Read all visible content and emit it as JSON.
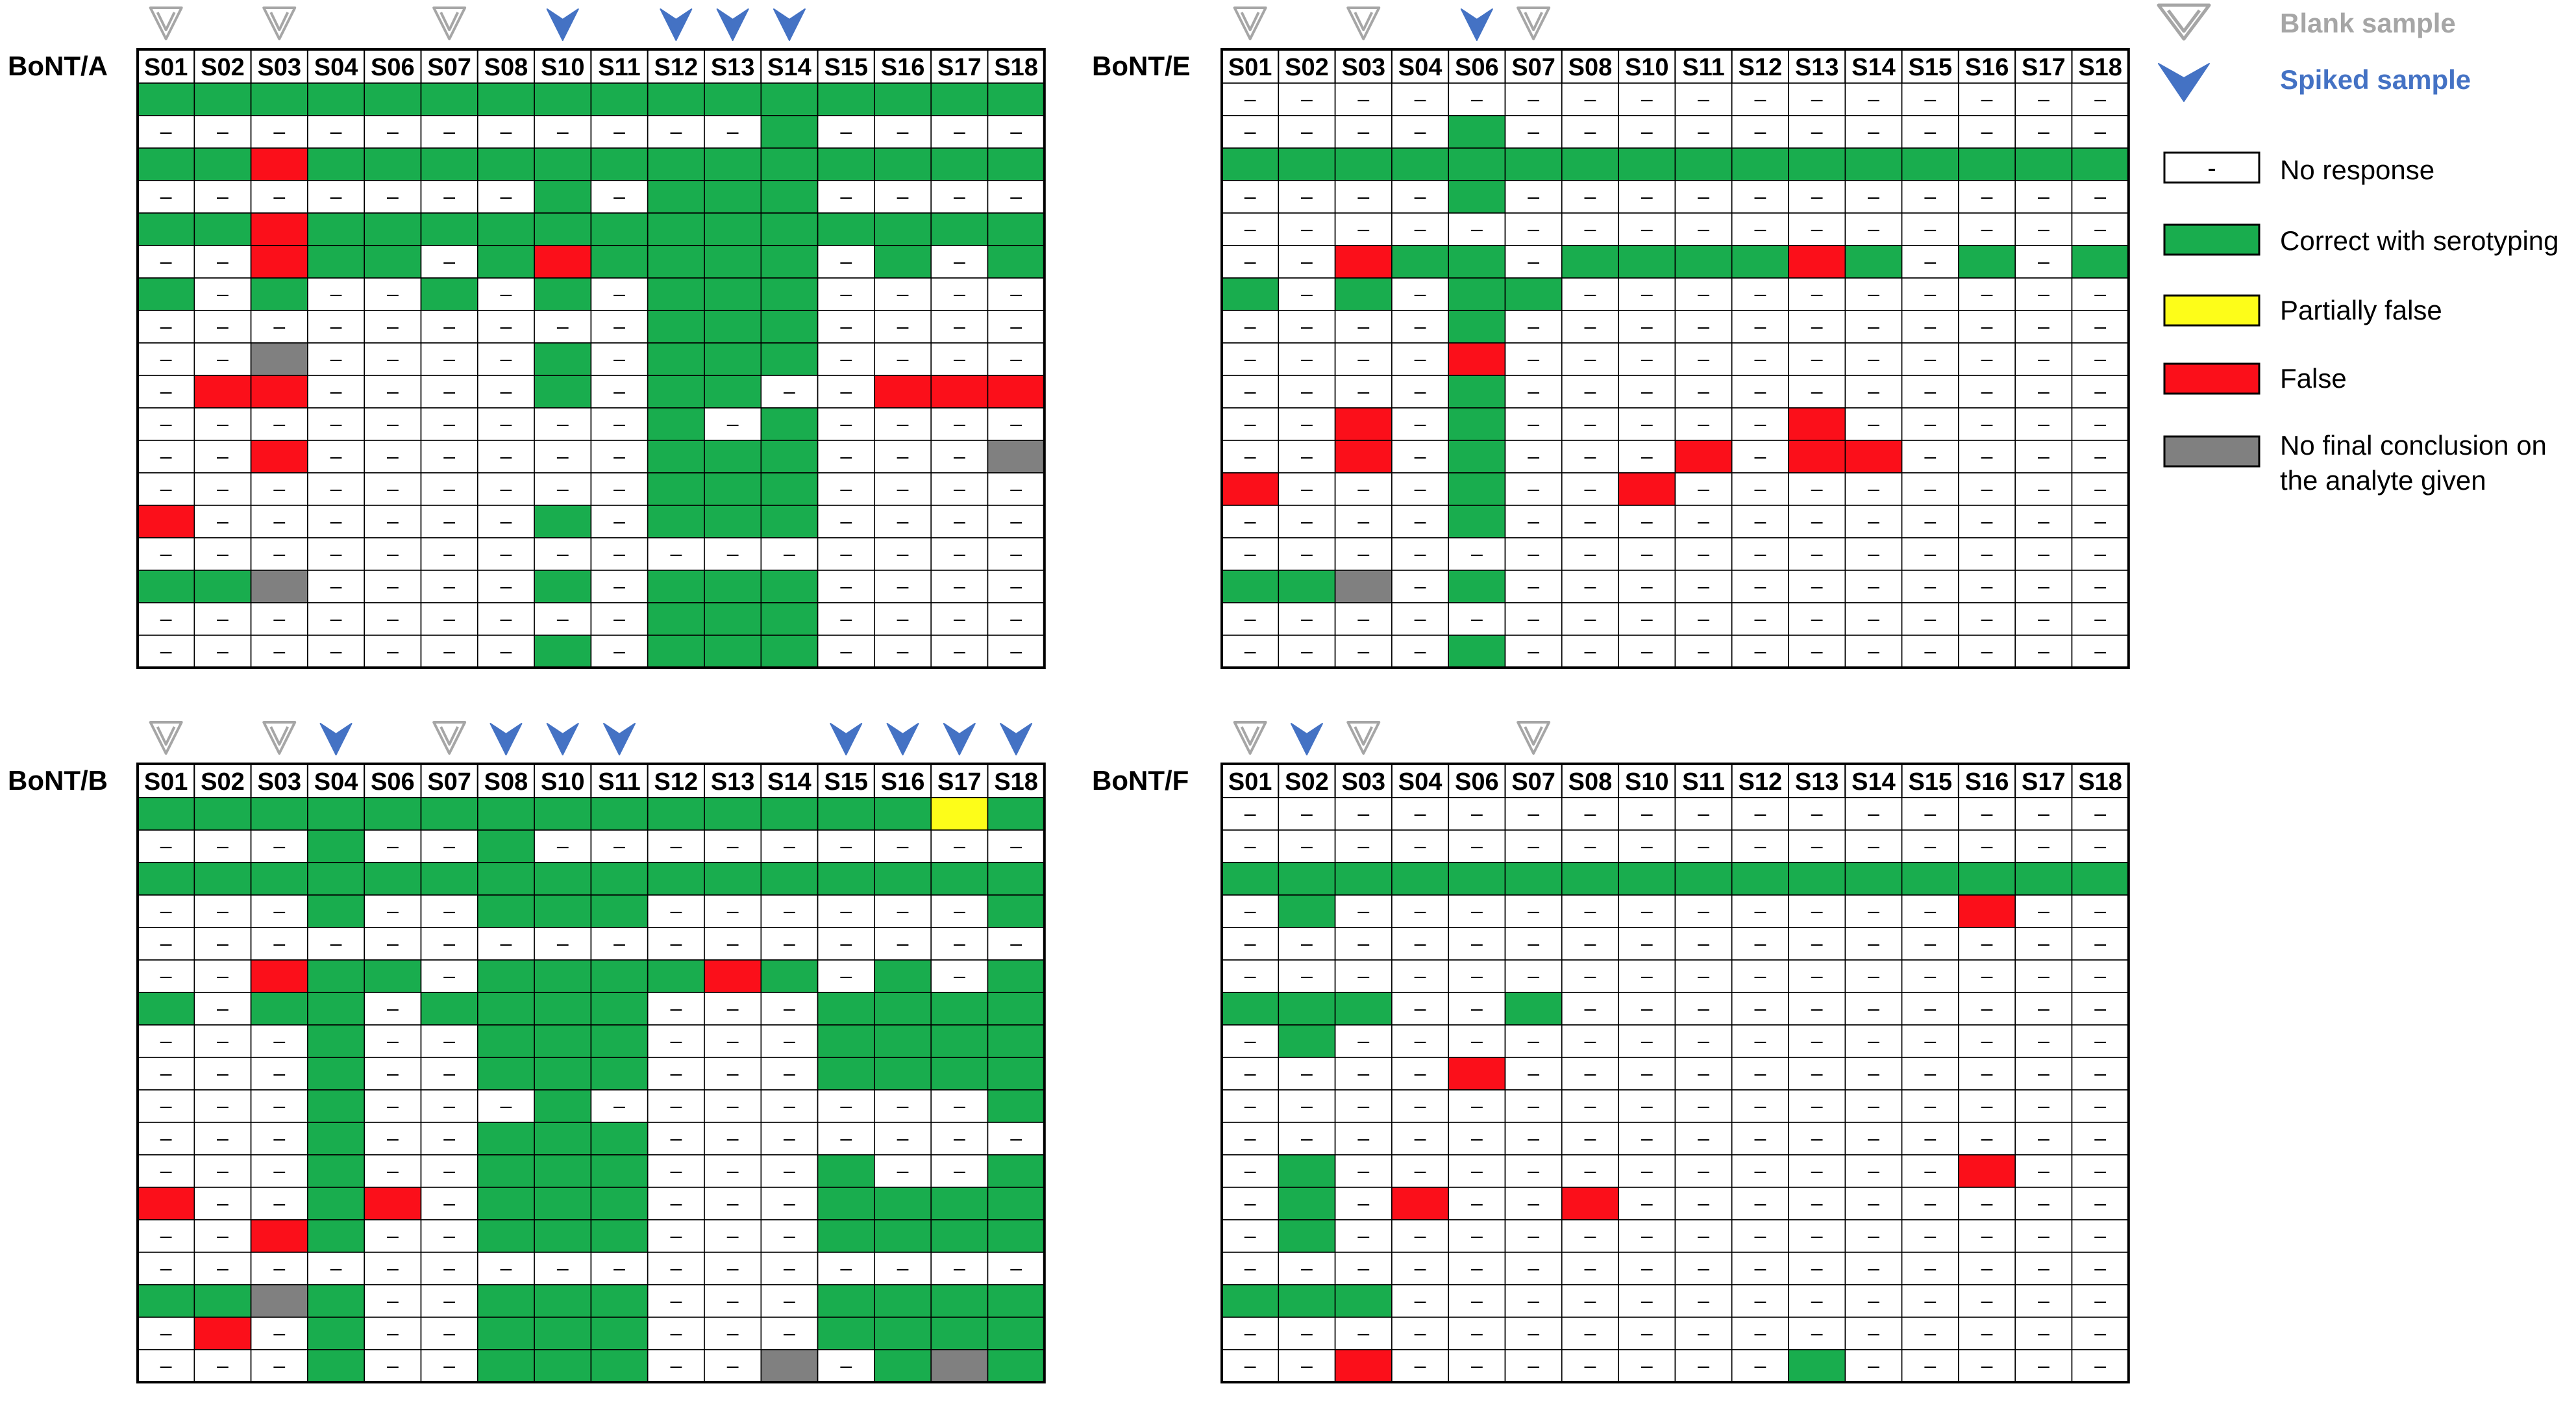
{
  "legend": {
    "blank_label": "Blank sample",
    "spiked_label": "Spiked sample",
    "no_response_symbol": "-",
    "no_response_label": "No response",
    "correct_label": "Correct with serotyping",
    "partial_label": "Partially false",
    "false_label": "False",
    "no_conclusion_label_line1": "No final conclusion on",
    "no_conclusion_label_line2": "the analyte given"
  },
  "colors": {
    "correct": "#19ad4e",
    "false": "#fb0f1a",
    "partial": "#fdfd19",
    "no_conclusion": "#808080",
    "blank_marker": "#a6a6a6",
    "spiked_marker": "#4472c4",
    "blank_text": "#a6a6a6",
    "spiked_text": "#4472c4"
  },
  "chart_data": [
    {
      "type": "table",
      "title": "BoNT/A",
      "columns": [
        "S01",
        "S02",
        "S03",
        "S04",
        "S06",
        "S07",
        "S08",
        "S10",
        "S11",
        "S12",
        "S13",
        "S14",
        "S15",
        "S16",
        "S17",
        "S18"
      ],
      "markers": [
        "blank",
        "",
        "blank",
        "",
        "",
        "blank",
        "",
        "spiked",
        "",
        "spiked",
        "spiked",
        "spiked",
        "",
        "",
        "",
        ""
      ],
      "rows": [
        "GGGGGGGGGGGGGGGG",
        "-----------G----",
        "GGRGGGGGGGGGGGGG",
        "-------G-GGG----",
        "GGRGGGGGGGGGGGGG",
        "--RGG-GRGGGG-G-G",
        "G-G--G-G-GGG----",
        "---------GGG----",
        "--N----G-GGG----",
        "-RR----G-GG--RRR",
        "---------G-G----",
        "--R------GGG---N",
        "---------GGG----",
        "R------G-GGG----",
        "----------------",
        "GGN----G-GGG----",
        "---------GGG----",
        "-------G-GGG----"
      ]
    },
    {
      "type": "table",
      "title": "BoNT/E",
      "columns": [
        "S01",
        "S02",
        "S03",
        "S04",
        "S06",
        "S07",
        "S08",
        "S10",
        "S11",
        "S12",
        "S13",
        "S14",
        "S15",
        "S16",
        "S17",
        "S18"
      ],
      "markers": [
        "blank",
        "",
        "blank",
        "",
        "spiked",
        "blank",
        "",
        "",
        "",
        "",
        "",
        "",
        "",
        "",
        "",
        ""
      ],
      "rows": [
        "----------------",
        "----G-----------",
        "GGGGGGGGGGGGGGGG",
        "----G-----------",
        "----------------",
        "--RGG-GGGGRG-G-G",
        "G-G-GG----------",
        "----G-----------",
        "----R-----------",
        "----G-----------",
        "--R-G-----R-----",
        "--R-G---R-RR----",
        "R---G--R--------",
        "----G-----------",
        "----------------",
        "GGN-G-----------",
        "----------------",
        "----G-----------"
      ]
    },
    {
      "type": "table",
      "title": "BoNT/B",
      "columns": [
        "S01",
        "S02",
        "S03",
        "S04",
        "S06",
        "S07",
        "S08",
        "S10",
        "S11",
        "S12",
        "S13",
        "S14",
        "S15",
        "S16",
        "S17",
        "S18"
      ],
      "markers": [
        "blank",
        "",
        "blank",
        "spiked",
        "",
        "blank",
        "spiked",
        "spiked",
        "spiked",
        "",
        "",
        "",
        "spiked",
        "spiked",
        "spiked",
        "spiked"
      ],
      "rows": [
        "GGGGGGGGGGGGGGYG",
        "---G--G---------",
        "GGGGGGGGGGGGGGGG",
        "---G--GGG------G",
        "----------------",
        "--RGG-GGGGRG-G-G",
        "G-GG-GGGG---GGGG",
        "---G--GGG---GGGG",
        "---G--GGG---GGGG",
        "---G---G-------G",
        "---G--GGG-------",
        "---G--GGG---G--G",
        "R--GR-GGG---GGGG",
        "--RG--GGG---GGGG",
        "----------------",
        "GGNG--GGG---GGGG",
        "-R-G--GGG---GGGG",
        "---G--GGG--N-GNG"
      ]
    },
    {
      "type": "table",
      "title": "BoNT/F",
      "columns": [
        "S01",
        "S02",
        "S03",
        "S04",
        "S06",
        "S07",
        "S08",
        "S10",
        "S11",
        "S12",
        "S13",
        "S14",
        "S15",
        "S16",
        "S17",
        "S18"
      ],
      "markers": [
        "blank",
        "spiked",
        "blank",
        "",
        "",
        "blank",
        "",
        "",
        "",
        "",
        "",
        "",
        "",
        "",
        "",
        ""
      ],
      "rows": [
        "----------------",
        "----------------",
        "GGGGGGGGGGGGGGGG",
        "-G-----------R--",
        "----------------",
        "----------------",
        "GGG--G----------",
        "-G--------------",
        "----R-----------",
        "----------------",
        "----------------",
        "-G-----------R--",
        "-G-R--R---------",
        "-G--------------",
        "----------------",
        "GGG-------------",
        "----------------",
        "--R-------G-----"
      ]
    }
  ]
}
